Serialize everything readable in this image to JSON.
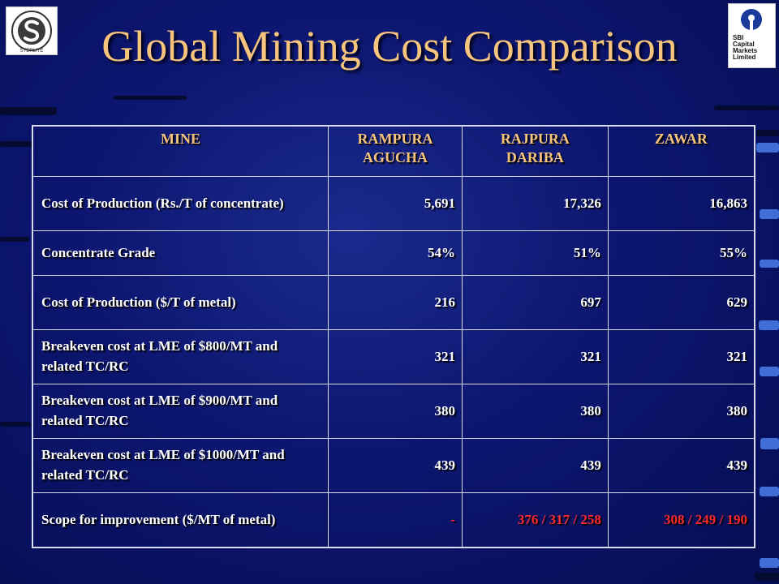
{
  "slide": {
    "title": "Global Mining Cost Comparison",
    "logos": {
      "left": {
        "text": "STERLITE"
      },
      "right": {
        "line1": "SBI",
        "line2": "Capital",
        "line3": "Markets",
        "line4": "Limited"
      }
    }
  },
  "table": {
    "headers": [
      {
        "line1": "MINE",
        "line2": ""
      },
      {
        "line1": "RAMPURA",
        "line2": "AGUCHA"
      },
      {
        "line1": "RAJPURA",
        "line2": "DARIBA"
      },
      {
        "line1": "ZAWAR",
        "line2": ""
      }
    ],
    "rows": [
      {
        "label": "Cost of Production (Rs./T of concentrate)",
        "values": [
          "5,691",
          "17,326",
          "16,863"
        ]
      },
      {
        "label": "Concentrate Grade",
        "values": [
          "54%",
          "51%",
          "55%"
        ]
      },
      {
        "label": "Cost of Production ($/T of metal)",
        "values": [
          "216",
          "697",
          "629"
        ]
      },
      {
        "label": "Breakeven cost at LME of $800/MT and related TC/RC",
        "values": [
          "321",
          "321",
          "321"
        ]
      },
      {
        "label": "Breakeven cost at LME of $900/MT and related TC/RC",
        "values": [
          "380",
          "380",
          "380"
        ]
      },
      {
        "label": "Breakeven cost at LME of $1000/MT and related TC/RC",
        "values": [
          "439",
          "439",
          "439"
        ]
      },
      {
        "label": "Scope for improvement ($/MT of metal)",
        "values": [
          "-",
          "376 / 317 / 258",
          "308 / 249 / 190"
        ]
      }
    ]
  },
  "colors": {
    "title": "#f6c47c",
    "header_text": "#f6c47c",
    "body_text": "#ffffff",
    "highlight_text": "#ff2a2a",
    "background": "#0c1670"
  }
}
